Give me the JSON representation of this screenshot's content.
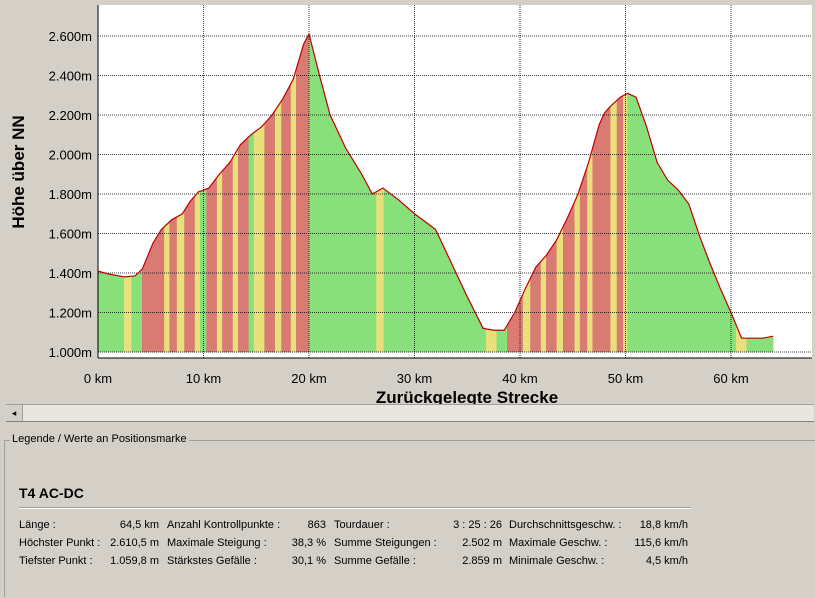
{
  "chart_data": {
    "type": "area",
    "xlabel": "Zurückgelegte Strecke",
    "ylabel": "Höhe über NN",
    "xlim": [
      0,
      68
    ],
    "ylim": [
      950,
      2700
    ],
    "x_ticks": [
      "0 km",
      "10 km",
      "20 km",
      "30 km",
      "40 km",
      "50 km",
      "60 km"
    ],
    "y_ticks": [
      "1.000m",
      "1.200m",
      "1.400m",
      "1.600m",
      "1.800m",
      "2.000m",
      "2.200m",
      "2.400m",
      "2.600m"
    ],
    "grid": true,
    "colors": {
      "flat": "#88e07a",
      "moderate": "#e8e07a",
      "steep": "#d97b72",
      "outline": "#c00000",
      "grid": "#000000"
    },
    "x": [
      0,
      1,
      2.5,
      3.5,
      4.2,
      5.2,
      6,
      7,
      8,
      8.7,
      9.5,
      10.5,
      11.5,
      12.5,
      13.5,
      14.5,
      15.5,
      16.5,
      17.5,
      18.5,
      19.5,
      20,
      21,
      22,
      23.5,
      25,
      26,
      27,
      28.5,
      30,
      32,
      33.5,
      35,
      36.5,
      37.5,
      38.5,
      39.5,
      40.5,
      41.5,
      42.5,
      43.5,
      44.5,
      45.5,
      46.5,
      47.5,
      48,
      48.5,
      49.5,
      50.2,
      51,
      52,
      53,
      54,
      55,
      56,
      57,
      58,
      59,
      60,
      61,
      62,
      63,
      64
    ],
    "y": [
      1410,
      1395,
      1380,
      1385,
      1420,
      1550,
      1620,
      1670,
      1700,
      1760,
      1810,
      1830,
      1900,
      1960,
      2050,
      2100,
      2140,
      2200,
      2280,
      2380,
      2560,
      2610,
      2400,
      2200,
      2030,
      1900,
      1800,
      1830,
      1770,
      1700,
      1620,
      1450,
      1280,
      1120,
      1110,
      1110,
      1200,
      1320,
      1430,
      1490,
      1570,
      1680,
      1800,
      1960,
      2150,
      2210,
      2240,
      2290,
      2310,
      2290,
      2140,
      1960,
      1870,
      1820,
      1750,
      1590,
      1450,
      1320,
      1200,
      1070,
      1070,
      1070,
      1080
    ],
    "segments": [
      {
        "x0": 0,
        "x1": 1,
        "grade": "flat"
      },
      {
        "x0": 1,
        "x1": 2.5,
        "grade": "flat"
      },
      {
        "x0": 2.5,
        "x1": 3.2,
        "grade": "moderate"
      },
      {
        "x0": 3.2,
        "x1": 4.2,
        "grade": "flat"
      },
      {
        "x0": 4.2,
        "x1": 6.3,
        "grade": "steep"
      },
      {
        "x0": 6.3,
        "x1": 6.8,
        "grade": "moderate"
      },
      {
        "x0": 6.8,
        "x1": 7.5,
        "grade": "steep"
      },
      {
        "x0": 7.5,
        "x1": 8.2,
        "grade": "moderate"
      },
      {
        "x0": 8.2,
        "x1": 9.2,
        "grade": "steep"
      },
      {
        "x0": 9.2,
        "x1": 9.7,
        "grade": "moderate"
      },
      {
        "x0": 9.7,
        "x1": 10.3,
        "grade": "flat"
      },
      {
        "x0": 10.3,
        "x1": 11.3,
        "grade": "steep"
      },
      {
        "x0": 11.3,
        "x1": 11.8,
        "grade": "moderate"
      },
      {
        "x0": 11.8,
        "x1": 12.8,
        "grade": "steep"
      },
      {
        "x0": 12.8,
        "x1": 13.3,
        "grade": "moderate"
      },
      {
        "x0": 13.3,
        "x1": 14.3,
        "grade": "steep"
      },
      {
        "x0": 14.3,
        "x1": 14.8,
        "grade": "flat"
      },
      {
        "x0": 14.8,
        "x1": 15.8,
        "grade": "moderate"
      },
      {
        "x0": 15.8,
        "x1": 16.8,
        "grade": "steep"
      },
      {
        "x0": 16.8,
        "x1": 17.4,
        "grade": "moderate"
      },
      {
        "x0": 17.4,
        "x1": 18.3,
        "grade": "steep"
      },
      {
        "x0": 18.3,
        "x1": 18.8,
        "grade": "moderate"
      },
      {
        "x0": 18.8,
        "x1": 20,
        "grade": "steep"
      },
      {
        "x0": 20,
        "x1": 26.4,
        "grade": "flat"
      },
      {
        "x0": 26.4,
        "x1": 27.1,
        "grade": "moderate"
      },
      {
        "x0": 27.1,
        "x1": 36.8,
        "grade": "flat"
      },
      {
        "x0": 36.8,
        "x1": 37.8,
        "grade": "moderate"
      },
      {
        "x0": 37.8,
        "x1": 38.8,
        "grade": "flat"
      },
      {
        "x0": 38.8,
        "x1": 40.3,
        "grade": "steep"
      },
      {
        "x0": 40.3,
        "x1": 41,
        "grade": "moderate"
      },
      {
        "x0": 41,
        "x1": 42,
        "grade": "steep"
      },
      {
        "x0": 42,
        "x1": 42.5,
        "grade": "moderate"
      },
      {
        "x0": 42.5,
        "x1": 43.5,
        "grade": "steep"
      },
      {
        "x0": 43.5,
        "x1": 44.1,
        "grade": "moderate"
      },
      {
        "x0": 44.1,
        "x1": 45.2,
        "grade": "steep"
      },
      {
        "x0": 45.2,
        "x1": 45.7,
        "grade": "moderate"
      },
      {
        "x0": 45.7,
        "x1": 46.4,
        "grade": "steep"
      },
      {
        "x0": 46.4,
        "x1": 46.9,
        "grade": "moderate"
      },
      {
        "x0": 46.9,
        "x1": 48.6,
        "grade": "steep"
      },
      {
        "x0": 48.6,
        "x1": 49.2,
        "grade": "moderate"
      },
      {
        "x0": 49.2,
        "x1": 49.8,
        "grade": "steep"
      },
      {
        "x0": 49.8,
        "x1": 50.2,
        "grade": "moderate"
      },
      {
        "x0": 50.2,
        "x1": 60.5,
        "grade": "flat"
      },
      {
        "x0": 60.5,
        "x1": 61.5,
        "grade": "moderate"
      },
      {
        "x0": 61.5,
        "x1": 64,
        "grade": "flat"
      }
    ]
  },
  "scrollbar": {
    "left_arrow_glyph": "◂"
  },
  "legend": {
    "title": "Legende / Werte an Positionsmarke",
    "tour_name": "T4 AC-DC",
    "stats": [
      {
        "label": "Länge :",
        "value": "64,5 km"
      },
      {
        "label": "Höchster Punkt :",
        "value": "2.610,5 m"
      },
      {
        "label": "Tiefster Punkt :",
        "value": "1.059,8 m"
      },
      {
        "label": "Anzahl Kontrollpunkte :",
        "value": "863"
      },
      {
        "label": "Maximale Steigung :",
        "value": "38,3 %"
      },
      {
        "label": "Stärkstes Gefälle :",
        "value": "30,1 %"
      },
      {
        "label": "Tourdauer :",
        "value": "3 : 25 : 26"
      },
      {
        "label": "Summe Steigungen :",
        "value": "2.502 m"
      },
      {
        "label": "Summe Gefälle :",
        "value": "2.859 m"
      },
      {
        "label": "Durchschnittsgeschw. :",
        "value": "18,8 km/h"
      },
      {
        "label": "Maximale Geschw. :",
        "value": "115,6 km/h"
      },
      {
        "label": "Minimale Geschw. :",
        "value": "4,5 km/h"
      }
    ]
  }
}
